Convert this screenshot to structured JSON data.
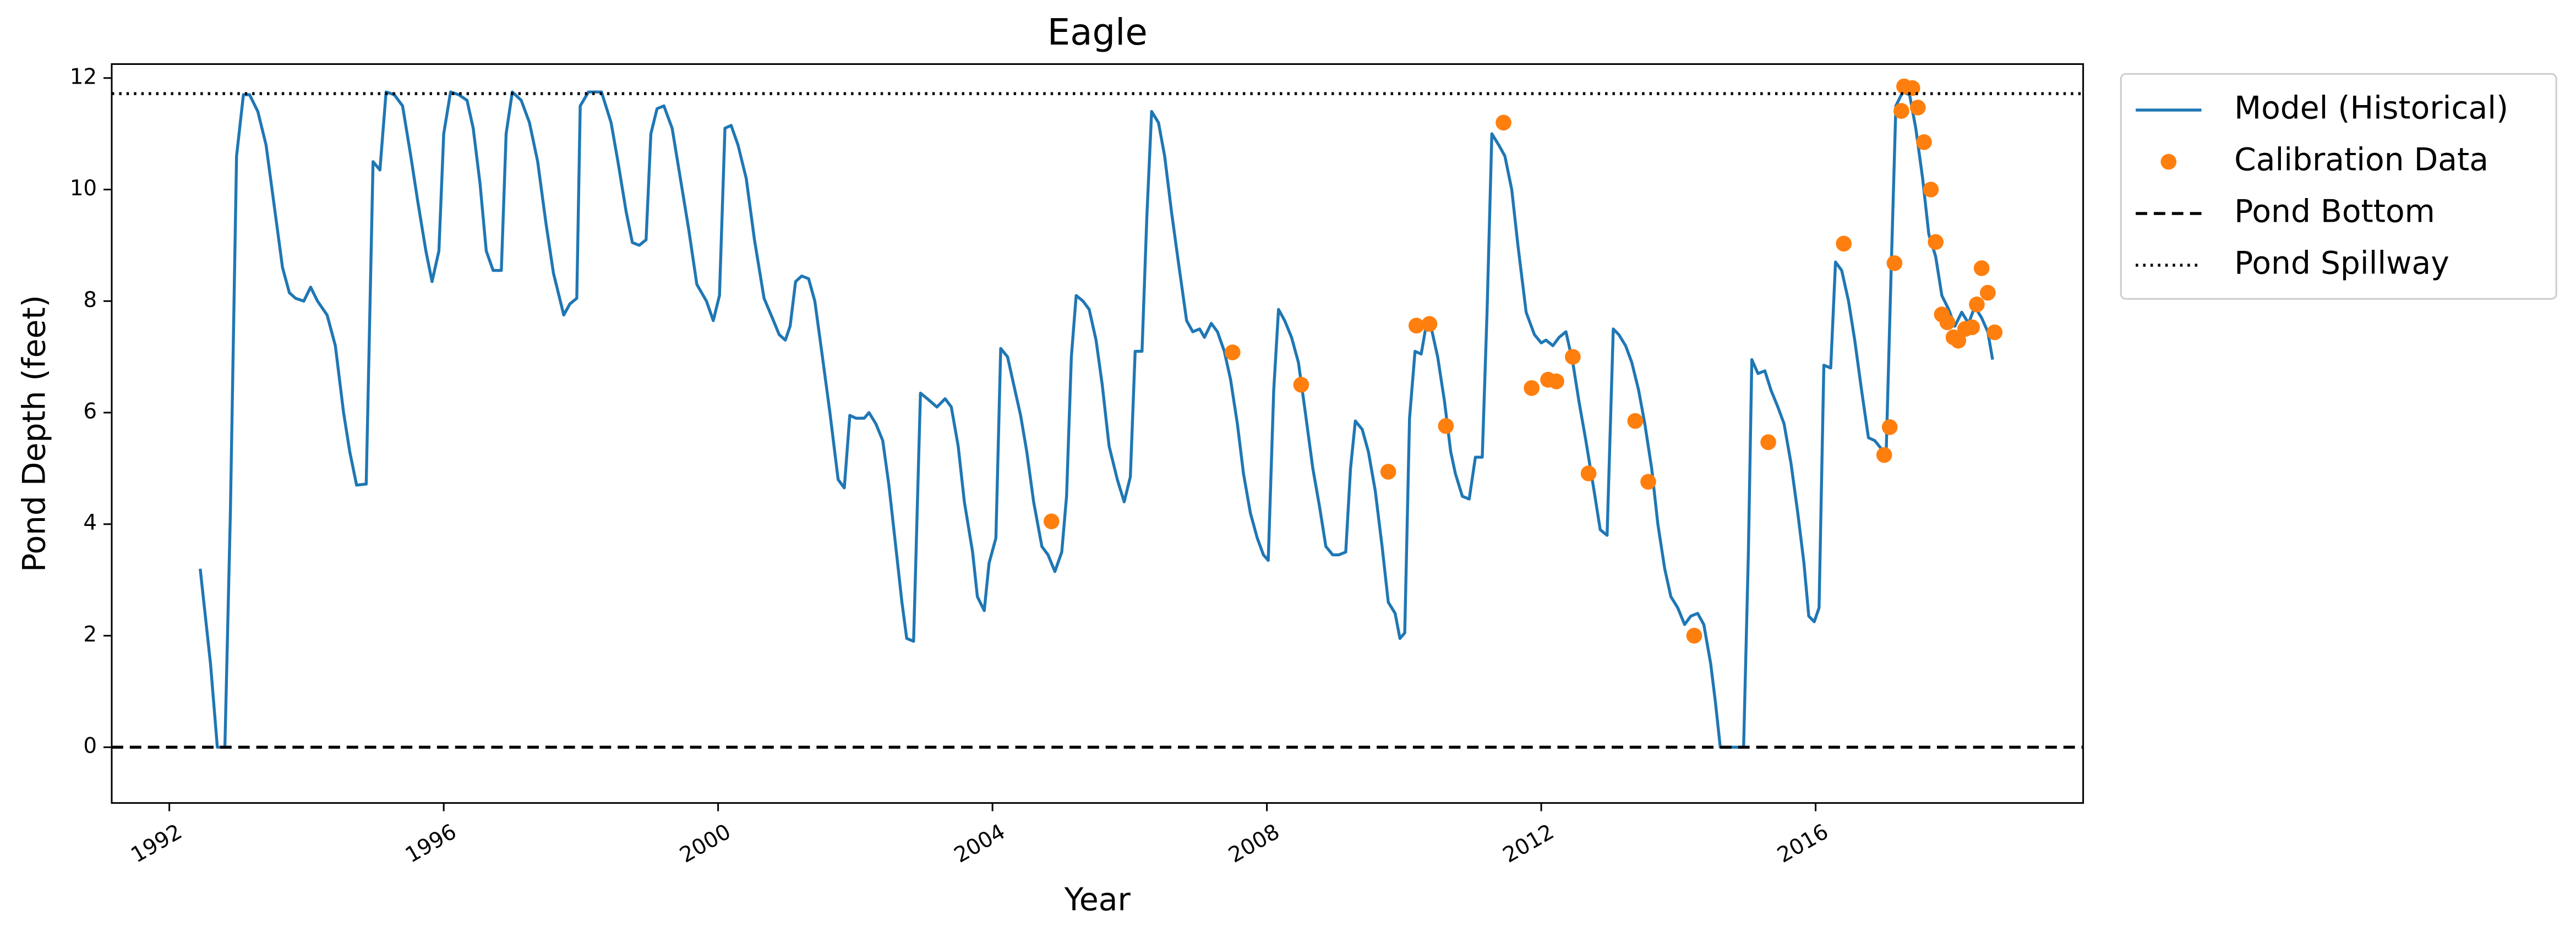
{
  "chart_data": {
    "type": "line",
    "title": "Eagle",
    "x_label": "Year",
    "y_label": "Pond Depth (feet)",
    "xlim": [
      1991.16,
      2019.9
    ],
    "ylim": [
      -1,
      12.25
    ],
    "xticks": [
      1992,
      1996,
      2000,
      2004,
      2008,
      2012,
      2016
    ],
    "yticks": [
      0,
      2,
      4,
      6,
      8,
      10,
      12
    ],
    "legend": "upper-right-outside",
    "series": [
      {
        "name": "Model (Historical)",
        "type": "line",
        "color": "#1f77b4",
        "x": [
          1992.45,
          1992.6,
          1992.7,
          1992.81,
          1992.89,
          1992.98,
          1993.08,
          1993.17,
          1993.29,
          1993.41,
          1993.53,
          1993.65,
          1993.75,
          1993.84,
          1993.96,
          1994.06,
          1994.16,
          1994.3,
          1994.42,
          1994.54,
          1994.63,
          1994.73,
          1994.87,
          1994.97,
          1995.07,
          1995.16,
          1995.28,
          1995.4,
          1995.52,
          1995.62,
          1995.74,
          1995.83,
          1995.93,
          1996.0,
          1996.1,
          1996.22,
          1996.34,
          1996.43,
          1996.53,
          1996.62,
          1996.72,
          1996.84,
          1996.91,
          1997.0,
          1997.13,
          1997.25,
          1997.37,
          1997.49,
          1997.6,
          1997.75,
          1997.84,
          1997.94,
          1997.99,
          1998.11,
          1998.3,
          1998.44,
          1998.54,
          1998.66,
          1998.75,
          1998.85,
          1998.95,
          1999.02,
          1999.11,
          1999.21,
          1999.33,
          1999.45,
          1999.57,
          1999.69,
          1999.83,
          1999.93,
          2000.02,
          2000.1,
          2000.19,
          2000.29,
          2000.41,
          2000.53,
          2000.67,
          2000.79,
          2000.89,
          2000.98,
          2001.05,
          2001.13,
          2001.22,
          2001.32,
          2001.41,
          2001.51,
          2001.63,
          2001.75,
          2001.84,
          2001.92,
          2002.01,
          2002.13,
          2002.2,
          2002.3,
          2002.4,
          2002.49,
          2002.59,
          2002.68,
          2002.75,
          2002.85,
          2002.95,
          2003.05,
          2003.19,
          2003.31,
          2003.4,
          2003.5,
          2003.59,
          2003.71,
          2003.78,
          2003.88,
          2003.95,
          2004.05,
          2004.12,
          2004.22,
          2004.31,
          2004.41,
          2004.5,
          2004.6,
          2004.72,
          2004.81,
          2004.91,
          2005.01,
          2005.08,
          2005.15,
          2005.22,
          2005.32,
          2005.41,
          2005.51,
          2005.6,
          2005.7,
          2005.82,
          2005.92,
          2006.01,
          2006.08,
          2006.18,
          2006.25,
          2006.32,
          2006.42,
          2006.51,
          2006.61,
          2006.71,
          2006.83,
          2006.92,
          2007.02,
          2007.09,
          2007.19,
          2007.28,
          2007.38,
          2007.47,
          2007.57,
          2007.66,
          2007.76,
          2007.86,
          2007.95,
          2008.02,
          2008.1,
          2008.17,
          2008.26,
          2008.36,
          2008.46,
          2008.55,
          2008.67,
          2008.77,
          2008.86,
          2008.96,
          2009.05,
          2009.15,
          2009.22,
          2009.29,
          2009.39,
          2009.48,
          2009.58,
          2009.68,
          2009.77,
          2009.87,
          2009.94,
          2010.01,
          2010.08,
          2010.16,
          2010.25,
          2010.32,
          2010.4,
          2010.49,
          2010.59,
          2010.68,
          2010.75,
          2010.85,
          2010.95,
          2011.04,
          2011.14,
          2011.21,
          2011.28,
          2011.38,
          2011.47,
          2011.57,
          2011.66,
          2011.78,
          2011.9,
          2012.0,
          2012.07,
          2012.17,
          2012.26,
          2012.36,
          2012.46,
          2012.55,
          2012.65,
          2012.77,
          2012.86,
          2012.96,
          2013.05,
          2013.13,
          2013.23,
          2013.32,
          2013.42,
          2013.51,
          2013.61,
          2013.7,
          2013.8,
          2013.89,
          2013.99,
          2014.09,
          2014.18,
          2014.28,
          2014.37,
          2014.47,
          2014.54,
          2014.61,
          2014.95,
          2015.02,
          2015.07,
          2015.16,
          2015.26,
          2015.35,
          2015.45,
          2015.54,
          2015.64,
          2015.74,
          2015.83,
          2015.9,
          2015.98,
          2016.05,
          2016.12,
          2016.22,
          2016.29,
          2016.38,
          2016.48,
          2016.57,
          2016.67,
          2016.77,
          2016.86,
          2016.96,
          2017.03,
          2017.1,
          2017.17,
          2017.27,
          2017.37,
          2017.46,
          2017.56,
          2017.65,
          2017.75,
          2017.84,
          2017.94,
          2018.03,
          2018.13,
          2018.23,
          2018.32,
          2018.42,
          2018.51,
          2018.58
        ],
        "values": [
          3.2,
          1.5,
          0,
          0,
          4.2,
          10.6,
          11.7,
          11.7,
          11.4,
          10.8,
          9.7,
          8.6,
          8.15,
          8.05,
          8.0,
          8.25,
          8.0,
          7.75,
          7.2,
          6.0,
          5.3,
          4.7,
          4.72,
          10.5,
          10.35,
          11.75,
          11.7,
          11.5,
          10.6,
          9.8,
          8.9,
          8.35,
          8.9,
          11.0,
          11.75,
          11.7,
          11.6,
          11.1,
          10.1,
          8.9,
          8.55,
          8.55,
          11.0,
          11.75,
          11.6,
          11.2,
          10.5,
          9.4,
          8.5,
          7.75,
          7.95,
          8.05,
          11.5,
          11.75,
          11.75,
          11.2,
          10.5,
          9.6,
          9.05,
          9.0,
          9.1,
          11.0,
          11.45,
          11.5,
          11.1,
          10.2,
          9.3,
          8.3,
          8.0,
          7.65,
          8.1,
          11.1,
          11.15,
          10.8,
          10.2,
          9.1,
          8.05,
          7.7,
          7.4,
          7.3,
          7.55,
          8.35,
          8.45,
          8.4,
          8.0,
          7.1,
          6.0,
          4.8,
          4.65,
          5.95,
          5.9,
          5.9,
          6.0,
          5.8,
          5.5,
          4.7,
          3.6,
          2.6,
          1.95,
          1.9,
          6.35,
          6.25,
          6.1,
          6.25,
          6.1,
          5.4,
          4.4,
          3.5,
          2.7,
          2.45,
          3.3,
          3.75,
          7.15,
          7.0,
          6.5,
          5.95,
          5.3,
          4.4,
          3.6,
          3.45,
          3.15,
          3.5,
          4.5,
          7.0,
          8.1,
          8.0,
          7.85,
          7.3,
          6.5,
          5.4,
          4.8,
          4.4,
          4.85,
          7.1,
          7.1,
          9.5,
          11.4,
          11.2,
          10.6,
          9.6,
          8.7,
          7.65,
          7.45,
          7.5,
          7.35,
          7.6,
          7.45,
          7.1,
          6.6,
          5.8,
          4.9,
          4.2,
          3.75,
          3.45,
          3.35,
          6.4,
          7.85,
          7.65,
          7.35,
          6.9,
          6.1,
          5.0,
          4.3,
          3.6,
          3.45,
          3.45,
          3.5,
          5.0,
          5.85,
          5.7,
          5.3,
          4.6,
          3.6,
          2.6,
          2.4,
          1.95,
          2.05,
          5.9,
          7.1,
          7.05,
          7.55,
          7.5,
          7.0,
          6.2,
          5.3,
          4.9,
          4.5,
          4.45,
          5.2,
          5.2,
          7.8,
          11.0,
          10.8,
          10.6,
          10.0,
          9.0,
          7.8,
          7.4,
          7.25,
          7.3,
          7.2,
          7.35,
          7.45,
          6.9,
          6.2,
          5.5,
          4.6,
          3.9,
          3.8,
          7.5,
          7.4,
          7.2,
          6.9,
          6.4,
          5.8,
          5.0,
          4.0,
          3.2,
          2.7,
          2.5,
          2.2,
          2.35,
          2.4,
          2.2,
          1.5,
          0.8,
          0,
          0,
          3.5,
          6.95,
          6.7,
          6.75,
          6.4,
          6.1,
          5.8,
          5.1,
          4.2,
          3.3,
          2.35,
          2.25,
          2.5,
          6.85,
          6.8,
          8.7,
          8.55,
          8.0,
          7.3,
          6.4,
          5.55,
          5.5,
          5.35,
          5.35,
          8.5,
          11.5,
          11.75,
          11.7,
          11.1,
          10.2,
          9.2,
          8.8,
          8.1,
          7.85,
          7.55,
          7.8,
          7.6,
          7.9,
          7.7,
          7.45,
          6.95
        ]
      },
      {
        "name": "Calibration Data",
        "type": "scatter",
        "color": "#ff7f0e",
        "x": [
          2004.86,
          2007.5,
          2008.5,
          2009.77,
          2010.18,
          2010.37,
          2010.61,
          2011.45,
          2011.86,
          2012.1,
          2012.22,
          2012.46,
          2012.69,
          2013.37,
          2013.56,
          2014.23,
          2015.31,
          2016.41,
          2017.0,
          2017.08,
          2017.15,
          2017.25,
          2017.29,
          2017.41,
          2017.49,
          2017.58,
          2017.68,
          2017.75,
          2017.84,
          2017.92,
          2018.01,
          2018.08,
          2018.18,
          2018.28,
          2018.35,
          2018.42,
          2018.51,
          2018.61
        ],
        "values": [
          4.05,
          7.08,
          6.5,
          4.94,
          7.56,
          7.59,
          5.76,
          11.2,
          6.44,
          6.59,
          6.56,
          7.0,
          4.91,
          5.85,
          4.76,
          2.0,
          5.47,
          9.03,
          5.24,
          5.74,
          8.68,
          11.41,
          11.85,
          11.82,
          11.47,
          10.85,
          10.0,
          9.06,
          7.76,
          7.62,
          7.35,
          7.29,
          7.5,
          7.53,
          7.94,
          8.59,
          8.15,
          7.44
        ]
      },
      {
        "name": "Pond Bottom",
        "type": "hline",
        "style": "dashed",
        "color": "#000000",
        "value": 0
      },
      {
        "name": "Pond Spillway",
        "type": "hline",
        "style": "dotted",
        "color": "#000000",
        "value": 11.72
      }
    ]
  }
}
